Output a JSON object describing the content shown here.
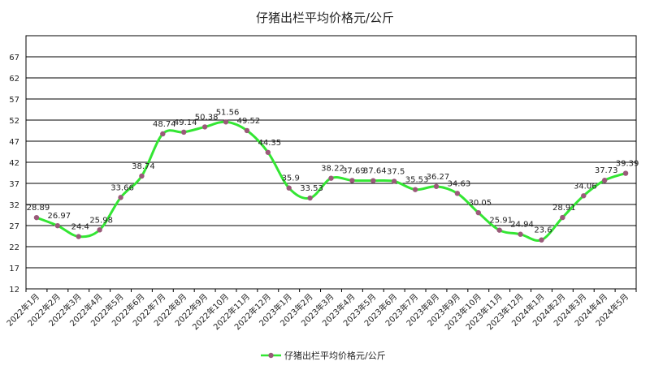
{
  "chart_data": {
    "type": "line",
    "title": "仔猪出栏平均价格元/公斤",
    "xlabel": "",
    "ylabel": "",
    "ylim": [
      12,
      72
    ],
    "yticks": [
      12,
      17,
      22,
      27,
      32,
      37,
      42,
      47,
      52,
      57,
      62,
      67
    ],
    "grid": true,
    "legend_position": "bottom",
    "categories": [
      "2022年1月",
      "2022年2月",
      "2022年3月",
      "2022年4月",
      "2022年5月",
      "2022年6月",
      "2022年7月",
      "2022年8月",
      "2022年9月",
      "2022年10月",
      "2022年11月",
      "2022年12月",
      "2023年1月",
      "2023年2月",
      "2023年3月",
      "2023年4月",
      "2023年5月",
      "2023年6月",
      "2023年7月",
      "2023年8月",
      "2023年9月",
      "2023年10月",
      "2023年11月",
      "2023年12月",
      "2024年1月",
      "2024年2月",
      "2024年3月",
      "2024年4月",
      "2024年5月"
    ],
    "series": [
      {
        "name": "仔猪出栏平均价格元/公斤",
        "line_color": "#33e633",
        "marker_color": "#9a5a7a",
        "values": [
          28.89,
          26.97,
          24.4,
          25.98,
          33.66,
          38.74,
          48.74,
          49.14,
          50.38,
          51.56,
          49.52,
          44.35,
          35.9,
          33.53,
          38.22,
          37.69,
          37.64,
          37.5,
          35.53,
          36.27,
          34.63,
          30.05,
          25.91,
          24.94,
          23.6,
          28.91,
          34.06,
          37.73,
          39.39
        ],
        "labels": [
          "28.89",
          "26.97",
          "24.4",
          "25.98",
          "33.66",
          "38.74",
          "48.74",
          "49.14",
          "50.38",
          "51.56",
          "49.52",
          "44.35",
          "35.9",
          "33.53",
          "38.22",
          "37.69",
          "37.64",
          "37.5",
          "35.53",
          "36.27",
          "34.63",
          "30.05",
          "25.91",
          "24.94",
          "23.6",
          "28.91",
          "34.06",
          "37.73",
          "39.39"
        ]
      }
    ]
  }
}
